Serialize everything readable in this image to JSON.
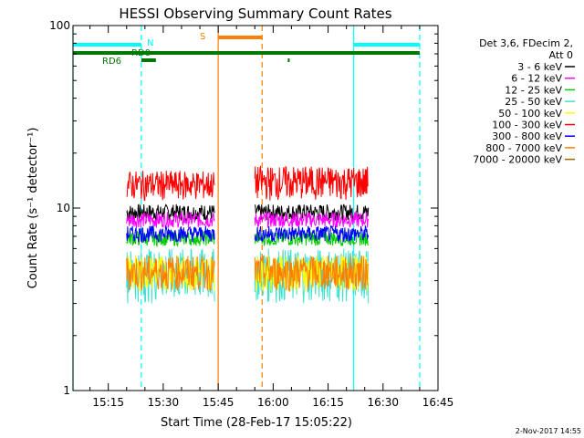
{
  "chart_data": {
    "type": "line",
    "title": "HESSI Observing Summary Count Rates",
    "xlabel": "Start Time (28-Feb-17 15:05:22)",
    "ylabel": "Count Rate (s⁻¹ detector⁻¹)",
    "yscale": "log",
    "ylim": [
      1,
      100
    ],
    "xlim": [
      "15:05:22",
      "16:45"
    ],
    "x_tick_labels": [
      "15:15",
      "15:30",
      "15:45",
      "16:00",
      "16:15",
      "16:30",
      "16:45"
    ],
    "y_tick_labels": [
      "1",
      "10",
      "100"
    ],
    "legend_header": [
      "Det 3,6, FDecim 2,",
      "Att 0"
    ],
    "legend_position": "right",
    "series": [
      {
        "name": "3 - 6 keV",
        "color": "#000000",
        "segments": [
          {
            "x_start": "15:20",
            "x_end": "15:44",
            "y_min": 8.5,
            "y_max": 10.5
          },
          {
            "x_start": "15:55",
            "x_end": "16:26",
            "y_min": 8.5,
            "y_max": 10.5
          }
        ]
      },
      {
        "name": "6 - 12 keV",
        "color": "#ff00ff",
        "segments": [
          {
            "x_start": "15:20",
            "x_end": "15:44",
            "y_min": 7.8,
            "y_max": 9.5
          },
          {
            "x_start": "15:55",
            "x_end": "16:26",
            "y_min": 7.8,
            "y_max": 9.5
          }
        ]
      },
      {
        "name": "12 - 25 keV",
        "color": "#00cc00",
        "segments": [
          {
            "x_start": "15:20",
            "x_end": "15:44",
            "y_min": 6.2,
            "y_max": 7.5
          },
          {
            "x_start": "15:55",
            "x_end": "16:26",
            "y_min": 6.2,
            "y_max": 7.5
          }
        ]
      },
      {
        "name": "25 - 50 keV",
        "color": "#40e0d0",
        "segments": [
          {
            "x_start": "15:20",
            "x_end": "15:44",
            "y_min": 3.0,
            "y_max": 6.0
          },
          {
            "x_start": "15:55",
            "x_end": "16:26",
            "y_min": 3.0,
            "y_max": 6.0
          }
        ]
      },
      {
        "name": "50 - 100 keV",
        "color": "#ffff00",
        "segments": [
          {
            "x_start": "15:20",
            "x_end": "15:44",
            "y_min": 3.5,
            "y_max": 5.5
          },
          {
            "x_start": "15:55",
            "x_end": "16:26",
            "y_min": 3.5,
            "y_max": 5.5
          }
        ]
      },
      {
        "name": "100 - 300 keV",
        "color": "#ff0000",
        "segments": [
          {
            "x_start": "15:20",
            "x_end": "15:44",
            "y_min": 11.0,
            "y_max": 16.0
          },
          {
            "x_start": "15:55",
            "x_end": "16:26",
            "y_min": 11.0,
            "y_max": 17.0
          }
        ]
      },
      {
        "name": "300 - 800 keV",
        "color": "#0000ff",
        "segments": [
          {
            "x_start": "15:20",
            "x_end": "15:44",
            "y_min": 6.5,
            "y_max": 8.0
          },
          {
            "x_start": "15:55",
            "x_end": "16:26",
            "y_min": 6.5,
            "y_max": 8.0
          }
        ]
      },
      {
        "name": "800 - 7000 keV",
        "color": "#ff8000",
        "segments": [
          {
            "x_start": "15:20",
            "x_end": "15:44",
            "y_min": 3.5,
            "y_max": 5.5
          },
          {
            "x_start": "15:55",
            "x_end": "16:26",
            "y_min": 3.5,
            "y_max": 5.5
          }
        ]
      },
      {
        "name": "7000 - 20000 keV",
        "color": "#996600",
        "segments": []
      }
    ],
    "flag_bars": [
      {
        "label": "N",
        "color": "#00ffff",
        "segments": [
          [
            "15:05:22",
            "15:24"
          ],
          [
            "16:22",
            "16:40"
          ]
        ]
      },
      {
        "label": "S",
        "color": "#ff8000",
        "segments": [
          [
            "15:45",
            "15:57"
          ]
        ]
      },
      {
        "label": "RD0",
        "color": "#007700",
        "segments": [
          [
            "15:05:22",
            "16:40"
          ]
        ]
      },
      {
        "label": "RD6",
        "color": "#007700",
        "segments": [
          [
            "15:24",
            "15:28"
          ],
          [
            "16:04",
            "16:04:30"
          ]
        ]
      }
    ],
    "vertical_markers": [
      {
        "x": "15:05:22",
        "color": "#00ffff",
        "style": "solid"
      },
      {
        "x": "15:24",
        "color": "#00ffff",
        "style": "dashed"
      },
      {
        "x": "15:45",
        "color": "#ff8000",
        "style": "solid"
      },
      {
        "x": "15:57",
        "color": "#ff8000",
        "style": "dashed"
      },
      {
        "x": "16:22",
        "color": "#00ffff",
        "style": "solid"
      },
      {
        "x": "16:40",
        "color": "#00ffff",
        "style": "dashed"
      }
    ],
    "footer_date": "2-Nov-2017 14:55"
  }
}
